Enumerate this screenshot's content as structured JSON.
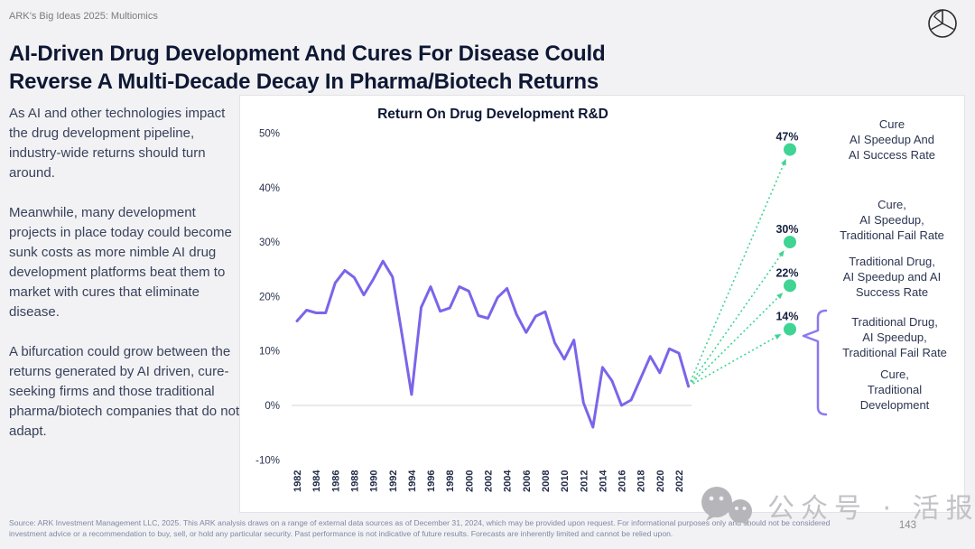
{
  "header": {
    "eyebrow": "ARK’s Big Ideas 2025: Multiomics",
    "title_line1": "AI-Driven Drug Development And Cures For Disease Could",
    "title_line2": "Reverse A Multi-Decade Decay In Pharma/Biotech Returns"
  },
  "sidebar": {
    "paragraphs": [
      "As AI and other technologies impact the drug development pipeline, industry-wide returns should turn around.",
      "Meanwhile, many development projects in place today could become sunk costs as more nimble AI drug development platforms beat them to market with cures that eliminate disease.",
      "A bifurcation could grow between the returns generated by AI driven, cure-seeking firms and those traditional pharma/biotech companies that do not adapt."
    ]
  },
  "chart_data": {
    "type": "line",
    "title": "Return On Drug Development R&D",
    "x": [
      1982,
      1983,
      1984,
      1985,
      1986,
      1987,
      1988,
      1989,
      1990,
      1991,
      1992,
      1993,
      1994,
      1995,
      1996,
      1997,
      1998,
      1999,
      2000,
      2001,
      2002,
      2003,
      2004,
      2005,
      2006,
      2007,
      2008,
      2009,
      2010,
      2011,
      2012,
      2013,
      2014,
      2015,
      2016,
      2017,
      2018,
      2019,
      2020,
      2021,
      2022,
      2023
    ],
    "series": [
      {
        "name": "Return on drug development R&D (%)",
        "color": "#7C64EA",
        "values": [
          15.5,
          17.5,
          17,
          17,
          22.5,
          24.8,
          23.5,
          20.3,
          23.2,
          26.5,
          23.6,
          13,
          2,
          18,
          21.8,
          17.3,
          17.9,
          21.8,
          21,
          16.5,
          16,
          19.8,
          21.5,
          16.7,
          13.4,
          16.4,
          17.2,
          11.5,
          8.5,
          12,
          0.5,
          -4,
          7,
          4.5,
          0,
          1,
          5,
          9,
          6,
          10.4,
          9.6,
          3.5
        ]
      }
    ],
    "x_tick_labels": [
      "1982",
      "1984",
      "1986",
      "1988",
      "1990",
      "1992",
      "1994",
      "1996",
      "1998",
      "2000",
      "2002",
      "2004",
      "2006",
      "2008",
      "2010",
      "2012",
      "2014",
      "2016",
      "2018",
      "2020",
      "2022"
    ],
    "y_tick_labels": [
      "50%",
      "40%",
      "30%",
      "20%",
      "10%",
      "0%",
      "-10%"
    ],
    "y_tick_values": [
      50,
      40,
      30,
      20,
      10,
      0,
      -10
    ],
    "ylim": [
      -13,
      53
    ],
    "grid": "single horizontal gridline at 0% only",
    "legend": "none",
    "projections": [
      {
        "pct": "47%",
        "value": 47
      },
      {
        "pct": "30%",
        "value": 30
      },
      {
        "pct": "22%",
        "value": 22
      },
      {
        "pct": "14%",
        "value": 14
      }
    ]
  },
  "scenario_labels": [
    {
      "lines": [
        "Cure",
        "AI Speedup And",
        "AI Success Rate"
      ]
    },
    {
      "lines": [
        "Cure,",
        "AI Speedup,",
        "Traditional Fail Rate"
      ]
    },
    {
      "lines": [
        "Traditional Drug,",
        "AI Speedup and AI",
        "Success Rate"
      ]
    },
    {
      "lines": [
        "Traditional Drug,",
        "AI Speedup,",
        "Traditional Fail Rate"
      ]
    },
    {
      "lines": [
        "Cure,",
        "Traditional",
        "Development"
      ]
    }
  ],
  "watermark": {
    "text": "公众号 · 活报告"
  },
  "footer": {
    "source": "Source: ARK Investment Management LLC, 2025. This ARK analysis draws on a range of external data sources as of December 31, 2024, which may be provided upon request. For informational purposes only and should not be considered investment advice or a recommendation to buy, sell, or hold any particular security. Past performance is not indicative of future results. Forecasts are inherently limited and cannot be relied upon.",
    "page_number": "143"
  },
  "colors": {
    "accent_purple": "#7C64EA",
    "accent_green": "#3FD494",
    "brace_purple": "#8A7AF0",
    "title_navy": "#0E1834",
    "body_text": "#39425C",
    "gridline": "#DCDCDF",
    "panel_border": "#E3E3E6",
    "muted_gray": "#7A7A80",
    "source_text": "#7D89A5",
    "watermark_gray": "#C2C2C6"
  }
}
